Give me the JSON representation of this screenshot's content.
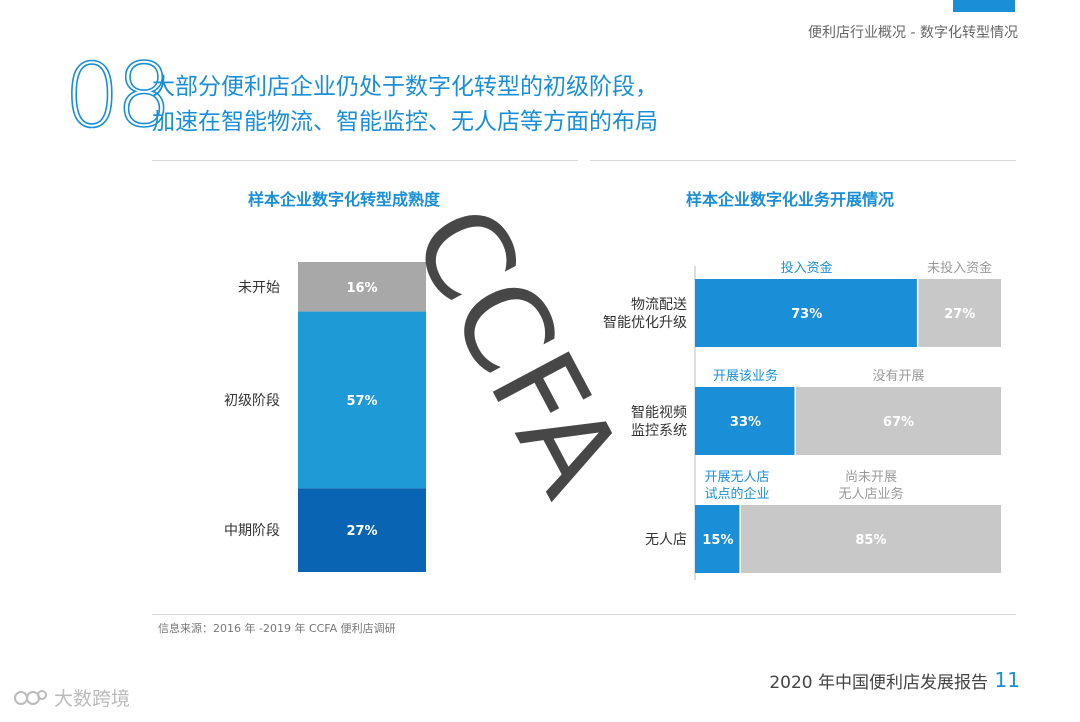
{
  "header": {
    "subtitle": "便利店行业概况 - 数字化转型情况"
  },
  "section": {
    "number": "08",
    "headline_line1": "大部分便利店企业仍处于数字化转型的初级阶段，",
    "headline_line2": "加速在智能物流、智能监控、无人店等方面的布局"
  },
  "watermark": "CCFA",
  "colors": {
    "accent": "#1a8fd8",
    "grey_segment": "#a8a8a8",
    "light_grey_segment": "#c8c8c8",
    "mid_blue": "#1e9ad6",
    "dark_blue": "#0a64b4"
  },
  "chart_data": [
    {
      "type": "bar",
      "title": "样本企业数字化转型成熟度",
      "stacked": true,
      "orientation": "vertical",
      "categories": [
        "未开始",
        "初级阶段",
        "中期阶段"
      ],
      "values": [
        16,
        57,
        27
      ],
      "value_labels": [
        "16%",
        "57%",
        "27%"
      ],
      "colors": [
        "#a8a8a8",
        "#1e9ad6",
        "#0a64b4"
      ]
    },
    {
      "type": "bar",
      "title": "样本企业数字化业务开展情况",
      "stacked": true,
      "orientation": "horizontal",
      "rows": [
        {
          "category": [
            "物流配送",
            "智能优化升级"
          ],
          "segments": [
            {
              "name": [
                "投入资金"
              ],
              "value": 73,
              "label": "73%"
            },
            {
              "name": [
                "未投入资金"
              ],
              "value": 27,
              "label": "27%"
            }
          ]
        },
        {
          "category": [
            "智能视频",
            "监控系统"
          ],
          "segments": [
            {
              "name": [
                "开展该业务"
              ],
              "value": 33,
              "label": "33%"
            },
            {
              "name": [
                "没有开展"
              ],
              "value": 67,
              "label": "67%"
            }
          ]
        },
        {
          "category": [
            "无人店"
          ],
          "segments": [
            {
              "name": [
                "开展无人店",
                "试点的企业"
              ],
              "value": 15,
              "label": "15%"
            },
            {
              "name": [
                "尚未开展",
                "无人店业务"
              ],
              "value": 85,
              "label": "85%"
            }
          ]
        }
      ],
      "colors": [
        "#1a8fd8",
        "#c8c8c8"
      ]
    }
  ],
  "footer": {
    "source": "信息来源：2016 年 -2019 年 CCFA 便利店调研",
    "report_title": "2020 年中国便利店发展报告",
    "page_number": "11",
    "logo_text": "大数跨境"
  }
}
